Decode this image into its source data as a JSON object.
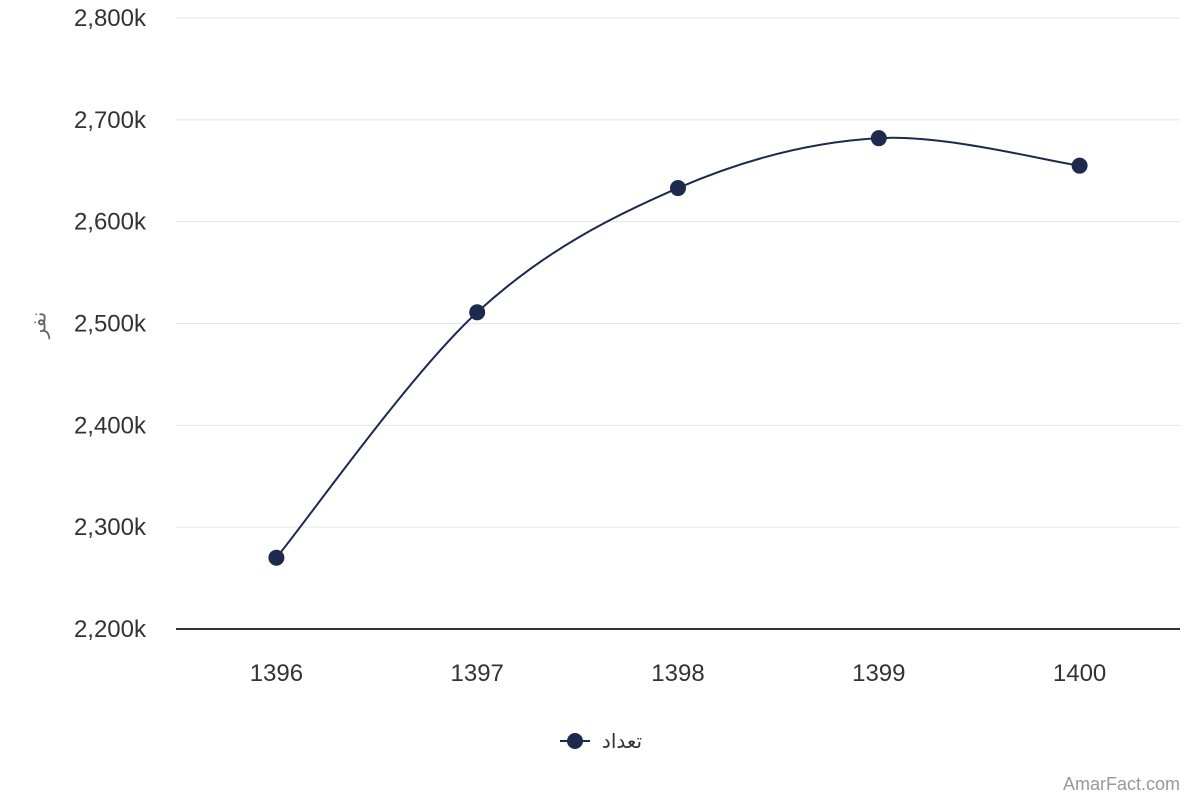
{
  "chart_data": {
    "type": "line",
    "categories": [
      "1396",
      "1397",
      "1398",
      "1399",
      "1400"
    ],
    "series": [
      {
        "name": "تعداد",
        "values": [
          2270000,
          2511000,
          2633000,
          2682000,
          2655000
        ],
        "color": "#1c2a4d"
      }
    ],
    "ylabel": "نفر",
    "ylim": [
      2200000,
      2800000
    ],
    "yticks": [
      "2,200k",
      "2,300k",
      "2,400k",
      "2,500k",
      "2,600k",
      "2,700k",
      "2,800k"
    ],
    "ytick_values": [
      2200000,
      2300000,
      2400000,
      2500000,
      2600000,
      2700000,
      2800000
    ],
    "grid": true,
    "smooth": true,
    "legend_position": "bottom"
  },
  "legend": {
    "label": "تعداد"
  },
  "credit": "AmarFact.com",
  "colors": {
    "series": "#1c2a4d",
    "grid": "#e6e6e6",
    "axis": "#333333"
  }
}
